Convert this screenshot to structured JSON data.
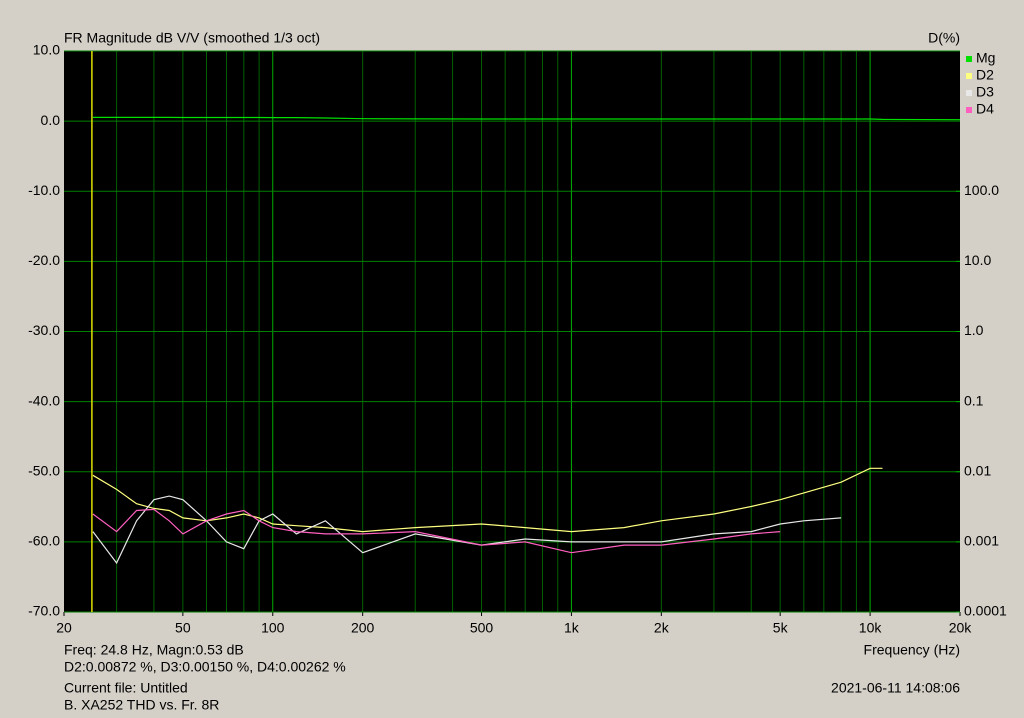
{
  "chart_data": {
    "type": "line",
    "title": "FR Magnitude dB V/V (smoothed 1/3 oct)",
    "y2_title": "D(%)",
    "x_label": "Frequency (Hz)",
    "x_scale": "log",
    "y2_scale": "log",
    "grid": true,
    "legend": "right",
    "cursor": 24.8,
    "xlim": [
      20,
      20000
    ],
    "xticks": [
      20,
      50,
      100,
      200,
      500,
      {
        "value": 1000,
        "label": "1k"
      },
      {
        "value": 2000,
        "label": "2k"
      },
      {
        "value": 5000,
        "label": "5k"
      },
      {
        "value": 10000,
        "label": "10k"
      },
      {
        "value": 20000,
        "label": "20k"
      }
    ],
    "ylim": [
      -70,
      10
    ],
    "yticks": [
      {
        "value": 10,
        "label": "10.0"
      },
      {
        "value": 0,
        "label": "0.0"
      },
      {
        "value": -10,
        "label": "-10.0"
      },
      {
        "value": -20,
        "label": "-20.0"
      },
      {
        "value": -30,
        "label": "-30.0"
      },
      {
        "value": -40,
        "label": "-40.0"
      },
      {
        "value": -50,
        "label": "-50.0"
      },
      {
        "value": -60,
        "label": "-60.0"
      },
      {
        "value": -70,
        "label": "-70.0"
      }
    ],
    "y2lim": [
      0.0001,
      10000
    ],
    "y2ticks": [
      {
        "value": 100,
        "label": "100.0"
      },
      {
        "value": 10,
        "label": "10.0"
      },
      {
        "value": 1,
        "label": "1.0"
      },
      0.1,
      0.01,
      0.001,
      0.0001
    ],
    "x": [
      25,
      30,
      35,
      40,
      45,
      50,
      60,
      70,
      80,
      90,
      100,
      120,
      150,
      200,
      300,
      500,
      700,
      1000,
      1500,
      2000,
      3000,
      4000,
      5000,
      6000,
      8000,
      10000,
      11000,
      20000
    ],
    "series": [
      {
        "name": "Mg",
        "color": "#00e000",
        "values": [
          0.53,
          0.53,
          0.53,
          0.53,
          0.53,
          0.52,
          0.52,
          0.52,
          0.51,
          0.51,
          0.5,
          0.5,
          0.45,
          0.35,
          0.32,
          0.3,
          0.3,
          0.3,
          0.3,
          0.3,
          0.3,
          0.3,
          0.3,
          0.3,
          0.3,
          0.3,
          0.25,
          0.2
        ]
      },
      {
        "name": "D2",
        "color": "#ffff80",
        "axis": "y2",
        "values": [
          0.0089,
          0.0056,
          0.0035,
          0.003,
          0.0028,
          0.0022,
          0.002,
          0.0022,
          0.0025,
          0.0022,
          0.0018,
          0.0017,
          0.0016,
          0.0014,
          0.0016,
          0.0018,
          0.0016,
          0.0014,
          0.0016,
          0.002,
          0.0025,
          0.0032,
          0.004,
          0.005,
          0.0071,
          0.0112,
          0.0112,
          null
        ]
      },
      {
        "name": "D3",
        "color": "#e8e8e8",
        "axis": "y2",
        "values": [
          0.0014,
          0.0005,
          0.002,
          0.004,
          0.0045,
          0.004,
          0.002,
          0.001,
          0.0008,
          0.002,
          0.0025,
          0.0013,
          0.002,
          0.0007,
          0.0013,
          0.0009,
          0.0011,
          0.001,
          0.001,
          0.001,
          0.0013,
          0.0014,
          0.0018,
          0.002,
          0.0022,
          null,
          null,
          null
        ]
      },
      {
        "name": "D4",
        "color": "#ff60c0",
        "axis": "y2",
        "values": [
          0.0025,
          0.0014,
          0.0028,
          0.0029,
          0.002,
          0.0013,
          0.002,
          0.0025,
          0.0028,
          0.002,
          0.0016,
          0.0014,
          0.0013,
          0.0013,
          0.0014,
          0.0009,
          0.001,
          0.0007,
          0.0009,
          0.0009,
          0.0011,
          0.0013,
          0.0014,
          null,
          null,
          null,
          null,
          null
        ]
      }
    ],
    "readout": [
      "Freq: 24.8 Hz, Magn:0.53 dB",
      "D2:0.00872 %, D3:0.00150 %, D4:0.00262 %"
    ],
    "file_info": [
      "Current file: Untitled",
      "B. XA252 THD vs. Fr. 8R"
    ],
    "timestamp": "2021-06-11  14:08:06"
  }
}
